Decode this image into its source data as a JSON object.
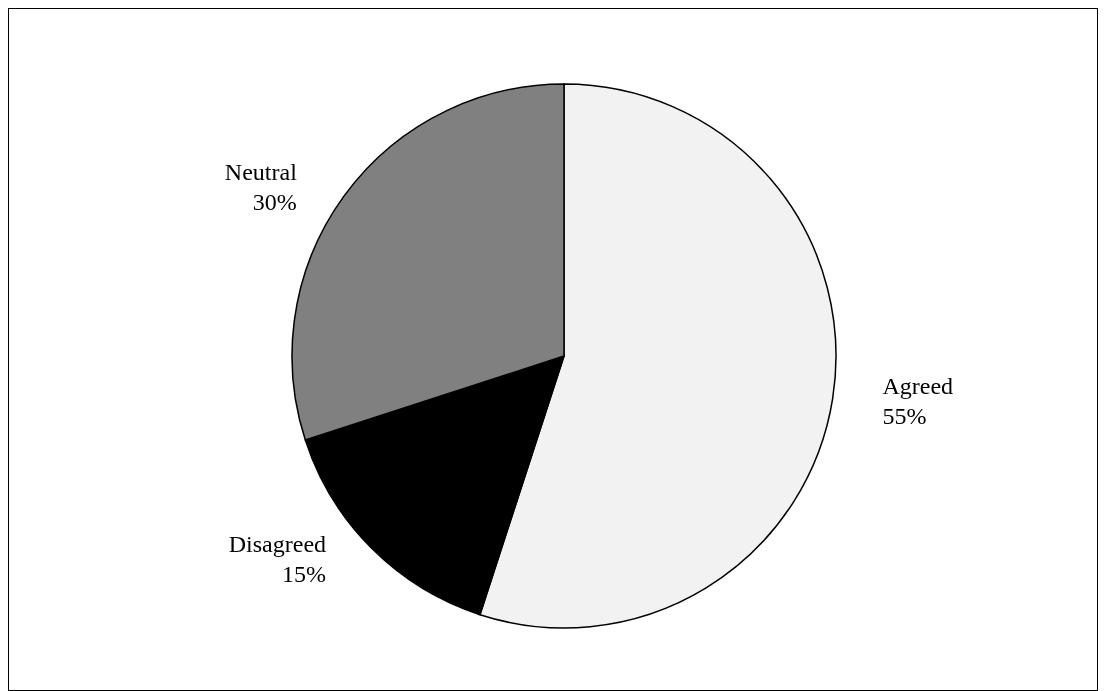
{
  "chart_data": {
    "type": "pie",
    "categories": [
      "Agreed",
      "Disagreed",
      "Neutral"
    ],
    "values": [
      55,
      15,
      30
    ],
    "colors": [
      "#f2f2f2",
      "#000000",
      "#808080"
    ],
    "value_labels": [
      "55%",
      "15%",
      "30%"
    ],
    "legend": false
  }
}
